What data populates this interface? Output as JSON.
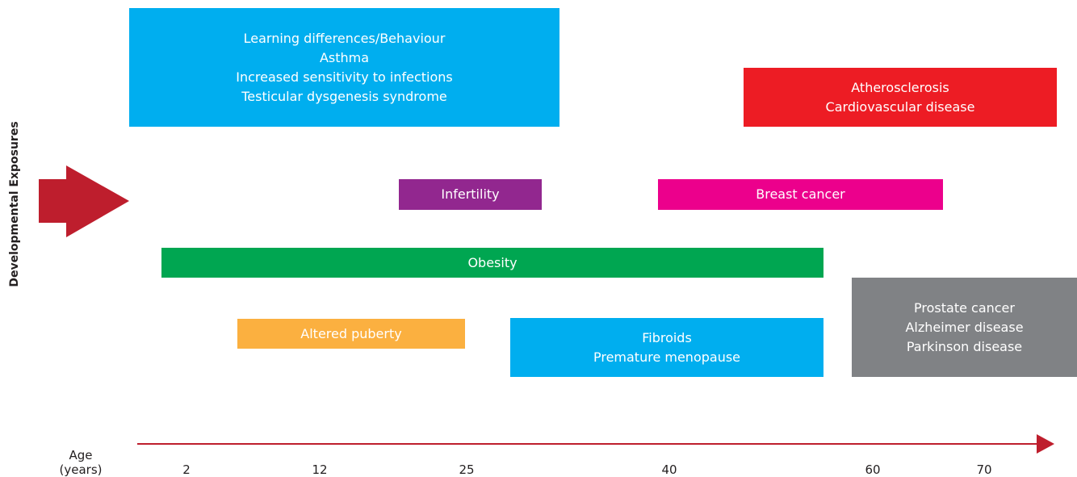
{
  "y_axis_label": "Developmental Exposures",
  "x_axis": {
    "label": [
      "Age",
      "(years)"
    ],
    "ticks": [
      "2",
      "12",
      "25",
      "40",
      "60",
      "70"
    ]
  },
  "boxes": [
    {
      "lines": [
        "Learning differences/Behaviour",
        "Asthma",
        "Increased sensitivity to infections",
        "Testicular dysgenesis syndrome"
      ]
    },
    {
      "lines": [
        "Atherosclerosis",
        "Cardiovascular disease"
      ]
    },
    {
      "lines": [
        "Infertility"
      ]
    },
    {
      "lines": [
        "Breast cancer"
      ]
    },
    {
      "lines": [
        "Obesity"
      ]
    },
    {
      "lines": [
        "Altered puberty"
      ]
    },
    {
      "lines": [
        "Fibroids",
        "Premature menopause"
      ]
    },
    {
      "lines": [
        "Prostate cancer",
        "Alzheimer disease",
        "Parkinson disease"
      ]
    }
  ]
}
